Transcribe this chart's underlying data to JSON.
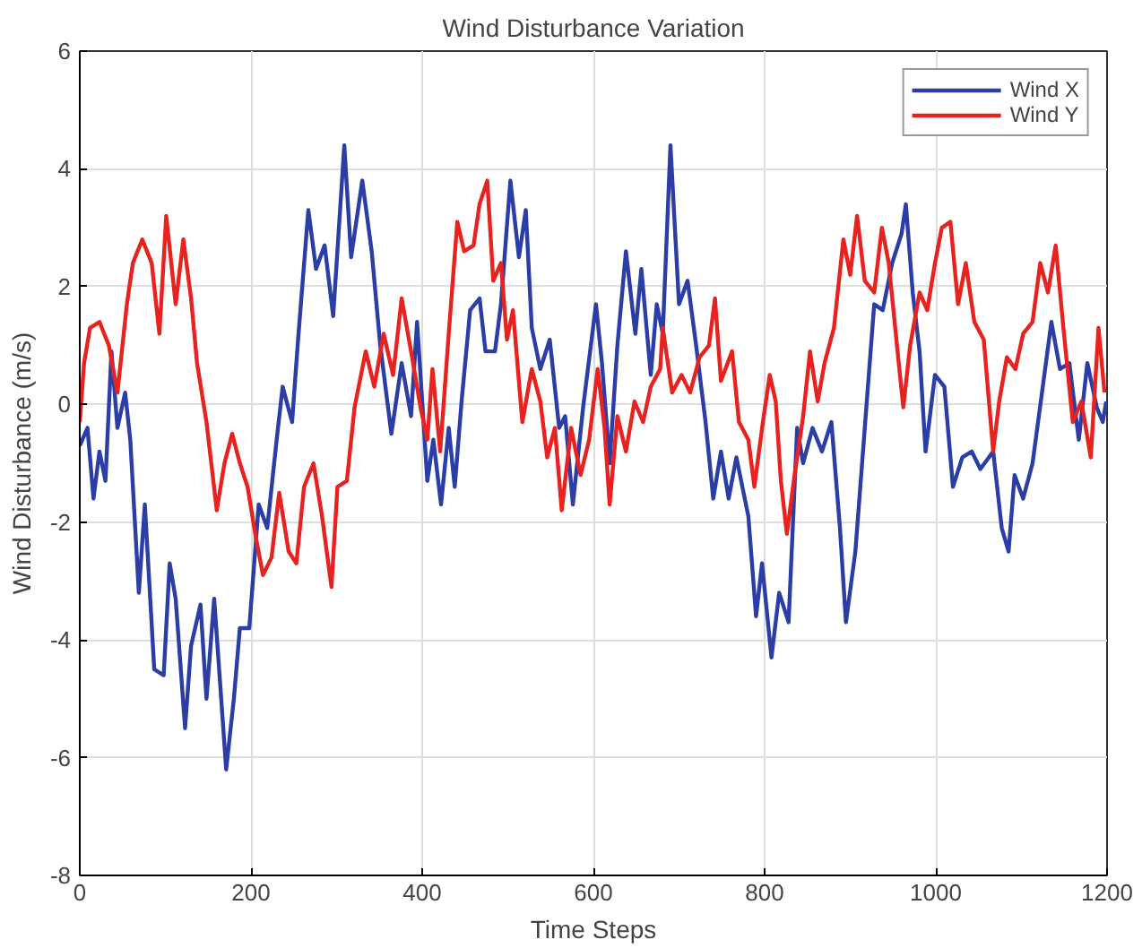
{
  "chart_data": {
    "type": "line",
    "title": "Wind Disturbance Variation",
    "xlabel": "Time Steps",
    "ylabel": "Wind Disturbance (m/s)",
    "xlim": [
      0,
      1200
    ],
    "xticks": [
      0,
      200,
      400,
      600,
      800,
      1000,
      1200
    ],
    "ylim": [
      -8,
      6
    ],
    "yticks": [
      -8,
      -6,
      -4,
      -2,
      0,
      2,
      4,
      6
    ],
    "grid": true,
    "legend": "top right",
    "series": [
      {
        "name": "Wind X",
        "color": "#2b3ea6",
        "x": [
          0,
          9,
          16,
          23,
          30,
          37,
          44,
          53,
          59,
          69,
          76,
          87,
          98,
          105,
          112,
          123,
          130,
          141,
          148,
          157,
          171,
          180,
          187,
          198,
          209,
          219,
          230,
          237,
          248,
          255,
          267,
          276,
          286,
          296,
          309,
          317,
          330,
          341,
          351,
          364,
          376,
          387,
          394,
          406,
          413,
          422,
          431,
          438,
          446,
          456,
          467,
          474,
          485,
          492,
          503,
          513,
          521,
          528,
          538,
          549,
          560,
          567,
          576,
          588,
          603,
          610,
          619,
          628,
          638,
          649,
          656,
          667,
          674,
          681,
          690,
          700,
          710,
          720,
          731,
          740,
          749,
          758,
          767,
          781,
          790,
          797,
          808,
          817,
          828,
          838,
          845,
          856,
          867,
          878,
          888,
          895,
          906,
          917,
          928,
          938,
          949,
          960,
          965,
          973,
          981,
          988,
          999,
          1010,
          1020,
          1031,
          1042,
          1052,
          1067,
          1077,
          1085,
          1092,
          1102,
          1113,
          1124,
          1135,
          1145,
          1156,
          1167,
          1177,
          1188,
          1195,
          1199
        ],
        "values": [
          -0.7,
          -0.4,
          -1.6,
          -0.8,
          -1.3,
          0.9,
          -0.4,
          0.2,
          -0.6,
          -3.2,
          -1.7,
          -4.5,
          -4.6,
          -2.7,
          -3.3,
          -5.5,
          -4.1,
          -3.4,
          -5.0,
          -3.3,
          -6.2,
          -5.0,
          -3.8,
          -3.8,
          -1.7,
          -2.1,
          -0.6,
          0.3,
          -0.3,
          1.1,
          3.3,
          2.3,
          2.7,
          1.5,
          4.4,
          2.5,
          3.8,
          2.6,
          1.0,
          -0.5,
          0.7,
          -0.2,
          1.4,
          -1.3,
          -0.6,
          -1.7,
          -0.4,
          -1.4,
          0.05,
          1.6,
          1.8,
          0.9,
          0.9,
          1.7,
          3.8,
          2.5,
          3.3,
          1.3,
          0.6,
          1.1,
          -0.4,
          -0.2,
          -1.7,
          -0.05,
          1.7,
          0.7,
          -1.0,
          1.0,
          2.6,
          1.2,
          2.3,
          0.5,
          1.7,
          1.2,
          4.4,
          1.7,
          2.1,
          1.0,
          -0.3,
          -1.6,
          -0.8,
          -1.6,
          -0.9,
          -1.9,
          -3.6,
          -2.7,
          -4.3,
          -3.2,
          -3.7,
          -0.4,
          -1.0,
          -0.4,
          -0.8,
          -0.3,
          -2.1,
          -3.7,
          -2.5,
          -0.4,
          1.7,
          1.6,
          2.4,
          2.9,
          3.4,
          1.9,
          0.9,
          -0.8,
          0.5,
          0.3,
          -1.4,
          -0.9,
          -0.8,
          -1.1,
          -0.8,
          -2.1,
          -2.5,
          -1.2,
          -1.6,
          -1.0,
          0.2,
          1.4,
          0.6,
          0.7,
          -0.6,
          0.7,
          -0.05,
          -0.3,
          0.05
        ]
      },
      {
        "name": "Wind Y",
        "color": "#e8231f",
        "x": [
          0,
          5,
          12,
          23,
          34,
          44,
          55,
          62,
          73,
          84,
          93,
          101,
          112,
          121,
          130,
          137,
          148,
          160,
          169,
          178,
          187,
          196,
          205,
          214,
          224,
          233,
          244,
          253,
          262,
          273,
          283,
          294,
          301,
          312,
          321,
          334,
          344,
          355,
          366,
          376,
          387,
          398,
          406,
          412,
          421,
          431,
          441,
          449,
          460,
          467,
          476,
          483,
          492,
          499,
          506,
          517,
          528,
          538,
          546,
          555,
          563,
          574,
          585,
          595,
          605,
          613,
          619,
          628,
          638,
          648,
          658,
          667,
          678,
          681,
          692,
          703,
          713,
          724,
          735,
          742,
          749,
          762,
          770,
          781,
          788,
          798,
          806,
          813,
          819,
          826,
          835,
          845,
          853,
          862,
          870,
          881,
          892,
          900,
          908,
          917,
          928,
          937,
          945,
          956,
          962,
          970,
          981,
          990,
          999,
          1007,
          1017,
          1026,
          1035,
          1045,
          1056,
          1067,
          1074,
          1083,
          1093,
          1102,
          1113,
          1122,
          1131,
          1140,
          1149,
          1160,
          1170,
          1181,
          1190,
          1197
        ],
        "values": [
          -0.3,
          0.7,
          1.3,
          1.4,
          1.0,
          0.2,
          1.7,
          2.4,
          2.8,
          2.4,
          1.2,
          3.2,
          1.7,
          2.8,
          1.8,
          0.7,
          -0.3,
          -1.8,
          -1.0,
          -0.5,
          -1.0,
          -1.4,
          -2.2,
          -2.9,
          -2.6,
          -1.5,
          -2.5,
          -2.7,
          -1.4,
          -1.0,
          -1.9,
          -3.1,
          -1.4,
          -1.3,
          -0.05,
          0.9,
          0.3,
          1.2,
          0.5,
          1.8,
          0.9,
          -0.05,
          -0.6,
          0.6,
          -0.8,
          1.2,
          3.1,
          2.6,
          2.7,
          3.4,
          3.8,
          2.1,
          2.4,
          1.1,
          1.6,
          -0.3,
          0.6,
          0.05,
          -0.9,
          -0.4,
          -1.8,
          -0.4,
          -1.2,
          -0.6,
          0.6,
          -0.4,
          -1.7,
          -0.2,
          -0.8,
          0.05,
          -0.3,
          0.3,
          0.6,
          1.3,
          0.2,
          0.5,
          0.2,
          0.8,
          1.0,
          1.8,
          0.4,
          0.9,
          -0.3,
          -0.6,
          -1.4,
          -0.3,
          0.5,
          0.05,
          -1.3,
          -2.2,
          -1.2,
          -0.2,
          0.9,
          0.05,
          0.7,
          1.3,
          2.8,
          2.2,
          3.2,
          2.1,
          1.9,
          3.0,
          2.4,
          0.8,
          -0.05,
          1.0,
          1.9,
          1.6,
          2.4,
          3.0,
          3.1,
          1.7,
          2.4,
          1.4,
          1.1,
          -0.8,
          0.05,
          0.8,
          0.6,
          1.2,
          1.4,
          2.4,
          1.9,
          2.7,
          1.3,
          -0.3,
          0.05,
          -0.9,
          1.3,
          0.2
        ]
      }
    ]
  }
}
